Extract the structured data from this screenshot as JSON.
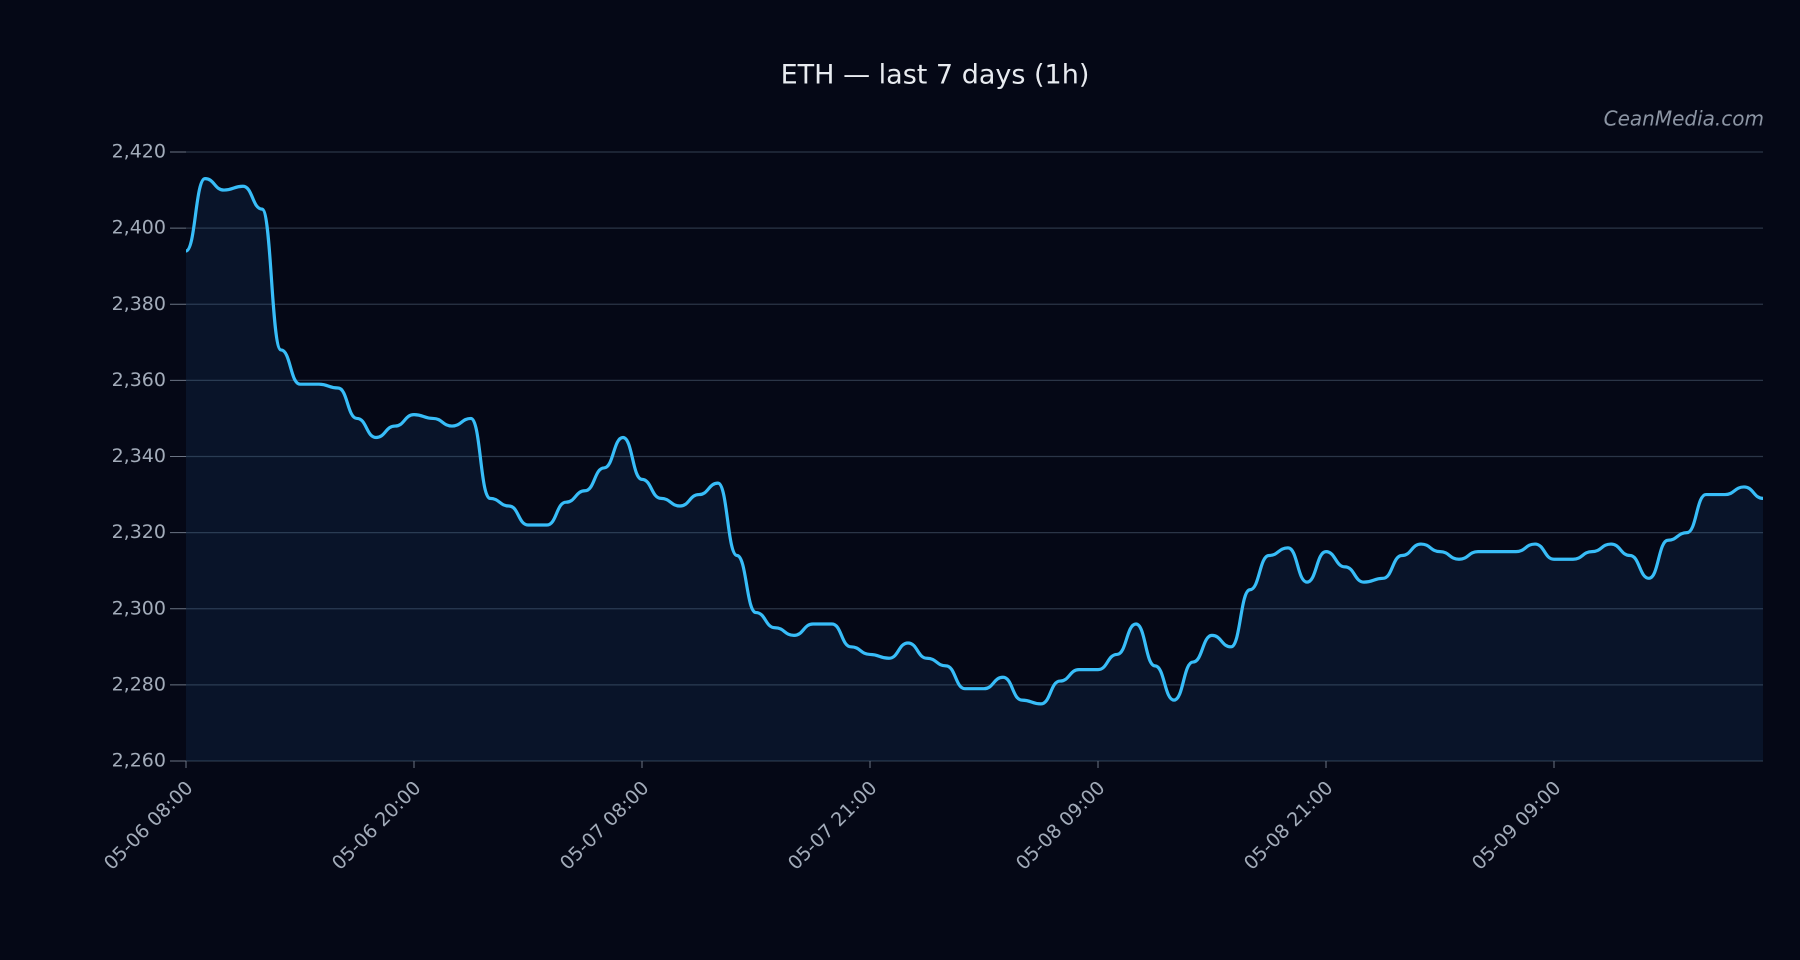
{
  "chart_data": {
    "type": "line",
    "title": "ETH — last 7 days (1h)",
    "watermark": "CeanMedia.com",
    "categories": [
      "05-06 08:00",
      null,
      null,
      null,
      null,
      null,
      null,
      null,
      null,
      null,
      null,
      null,
      "05-06 20:00",
      null,
      null,
      null,
      null,
      null,
      null,
      null,
      null,
      null,
      null,
      null,
      "05-07 08:00",
      null,
      null,
      null,
      null,
      null,
      null,
      null,
      null,
      null,
      null,
      null,
      "05-07 21:00",
      null,
      null,
      null,
      null,
      null,
      null,
      null,
      null,
      null,
      null,
      null,
      "05-08 09:00",
      null,
      null,
      null,
      null,
      null,
      null,
      null,
      null,
      null,
      null,
      null,
      "05-08 21:00",
      null,
      null,
      null,
      null,
      null,
      null,
      null,
      null,
      null,
      null,
      null,
      "05-09 09:00",
      null,
      null,
      null,
      null,
      null,
      null,
      null,
      null,
      null,
      null,
      null
    ],
    "values": [
      2394,
      2413,
      2410,
      2411,
      2405,
      2368,
      2359,
      2359,
      2358,
      2350,
      2345,
      2348,
      2351,
      2350,
      2348,
      2350,
      2329,
      2327,
      2322,
      2322,
      2328,
      2331,
      2337,
      2345,
      2334,
      2329,
      2327,
      2330,
      2333,
      2314,
      2299,
      2295,
      2293,
      2296,
      2296,
      2290,
      2288,
      2287,
      2291,
      2287,
      2285,
      2279,
      2279,
      2282,
      2276,
      2275,
      2281,
      2284,
      2284,
      2288,
      2296,
      2285,
      2276,
      2286,
      2293,
      2290,
      2305,
      2314,
      2316,
      2307,
      2315,
      2311,
      2307,
      2308,
      2314,
      2317,
      2315,
      2313,
      2315,
      2315,
      2315,
      2317,
      2313,
      2313,
      2315,
      2317,
      2314,
      2308,
      2318,
      2320,
      2330,
      2330,
      2332,
      2329
    ],
    "color": "#38bdf8",
    "ylim": [
      2260,
      2420
    ],
    "yticks": [
      {
        "value": 2260,
        "label": "2,260"
      },
      {
        "value": 2280,
        "label": "2,280"
      },
      {
        "value": 2300,
        "label": "2,300"
      },
      {
        "value": 2320,
        "label": "2,320"
      },
      {
        "value": 2340,
        "label": "2,340"
      },
      {
        "value": 2360,
        "label": "2,360"
      },
      {
        "value": 2380,
        "label": "2,380"
      },
      {
        "value": 2400,
        "label": "2,400"
      },
      {
        "value": 2420,
        "label": "2,420"
      }
    ],
    "grid": true
  }
}
